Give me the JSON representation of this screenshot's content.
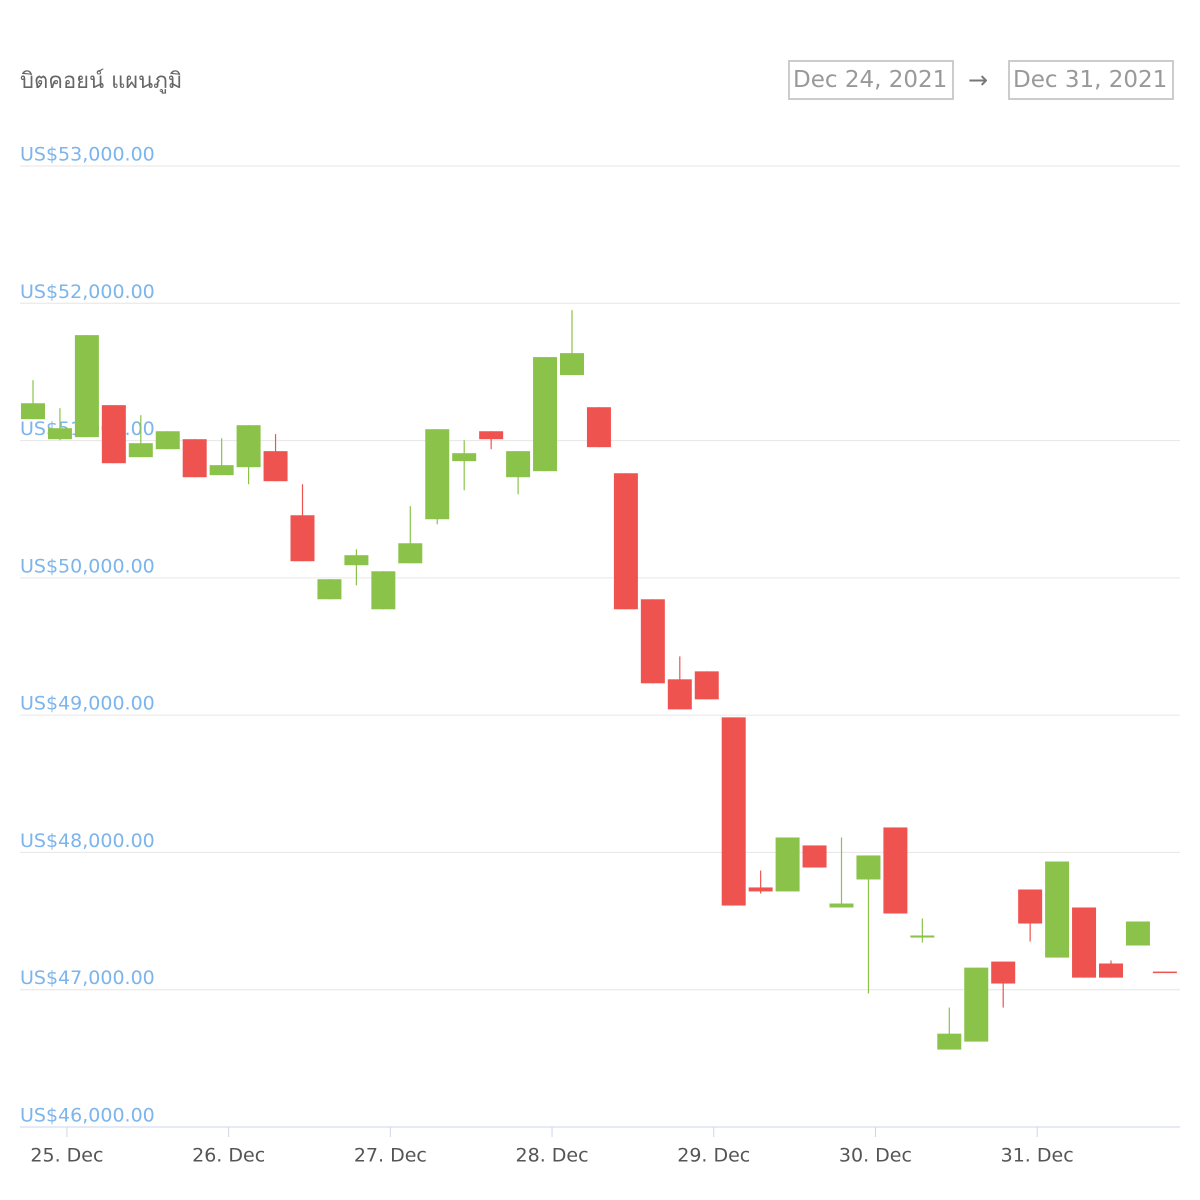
{
  "chart_data": {
    "type": "candlestick",
    "title": "บิตคอยน์ แผนภูมิ",
    "date_range": {
      "from": "Dec 24, 2021",
      "separator": "→",
      "to": "Dec 31, 2021"
    },
    "categories": [
      null,
      "25. Dec",
      null,
      null,
      null,
      null,
      null,
      "26. Dec",
      null,
      null,
      null,
      null,
      null,
      "27. Dec",
      null,
      null,
      null,
      null,
      null,
      "28. Dec",
      null,
      null,
      null,
      null,
      null,
      "29. Dec",
      null,
      null,
      null,
      null,
      null,
      "30. Dec",
      null,
      null,
      null,
      null,
      null,
      "31. Dec",
      null,
      null,
      null,
      null,
      null
    ],
    "up_color": "#8bc34a",
    "down_color": "#ef5350",
    "open": [
      51156,
      51010,
      51025,
      51258,
      50879,
      50937,
      51010,
      50748,
      50806,
      50923,
      50456,
      49844,
      50092,
      49771,
      50106,
      50427,
      50850,
      51068,
      50733,
      50777,
      51477,
      51243,
      50762,
      49844,
      49261,
      49319,
      48984,
      47745,
      47716,
      48051,
      47599,
      47803,
      48182,
      47380,
      46564,
      46622,
      47205,
      47730,
      47234,
      47599,
      47191,
      47322,
      47132
    ],
    "high": [
      51440,
      51236,
      51768,
      51258,
      51185,
      51068,
      51010,
      51017,
      51112,
      51047,
      50682,
      49990,
      50208,
      50048,
      50522,
      51083,
      51003,
      51068,
      50923,
      51608,
      51950,
      51243,
      50762,
      49844,
      49428,
      49319,
      48984,
      47868,
      48109,
      48051,
      48109,
      47978,
      48182,
      47519,
      46870,
      47161,
      47205,
      47730,
      47934,
      47599,
      47213,
      47497,
      47132
    ],
    "low": [
      51156,
      51003,
      51025,
      50835,
      50879,
      50937,
      50733,
      50748,
      50682,
      50704,
      50121,
      49844,
      49946,
      49771,
      50106,
      50390,
      50638,
      50937,
      50609,
      50777,
      51477,
      50952,
      49771,
      49232,
      49042,
      49115,
      47613,
      47701,
      47716,
      47890,
      47599,
      46972,
      47555,
      47344,
      46564,
      46622,
      46870,
      47351,
      47234,
      47088,
      47088,
      47322,
      47125
    ],
    "close": [
      51272,
      51090,
      51768,
      50835,
      50981,
      51068,
      50733,
      50821,
      51112,
      50704,
      50121,
      49990,
      50165,
      50048,
      50252,
      51083,
      50908,
      51010,
      50923,
      51608,
      51637,
      50952,
      49771,
      49232,
      49042,
      49115,
      47613,
      47716,
      48109,
      47890,
      47628,
      47978,
      47555,
      47395,
      46680,
      47161,
      47045,
      47482,
      47934,
      47088,
      47088,
      47497,
      47125
    ],
    "ylim": [
      46000,
      53000
    ],
    "yticks": [
      {
        "value": 46000,
        "label": "US$46,000.00"
      },
      {
        "value": 47000,
        "label": "US$47,000.00"
      },
      {
        "value": 48000,
        "label": "US$48,000.00"
      },
      {
        "value": 49000,
        "label": "US$49,000.00"
      },
      {
        "value": 50000,
        "label": "US$50,000.00"
      },
      {
        "value": 51000,
        "label": "US$51,000.00"
      },
      {
        "value": 52000,
        "label": "US$52,000.00"
      },
      {
        "value": 53000,
        "label": "US$53,000.00"
      }
    ],
    "grid": true
  }
}
